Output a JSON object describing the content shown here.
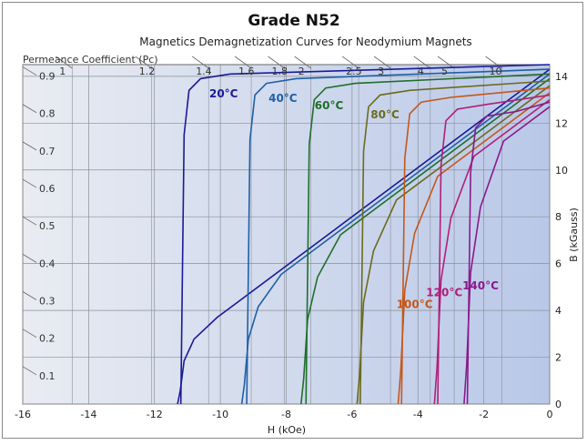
{
  "chart_data": {
    "type": "line",
    "title": "Grade N52",
    "subtitle": "Magnetics Demagnetization Curves for Neodymium Magnets",
    "xlabel": "H (kOe)",
    "ylabel": "B (kGauss)",
    "xlim": [
      -16,
      0
    ],
    "ylim": [
      0,
      14.5
    ],
    "x_ticks": [
      "-16",
      "-14",
      "-12",
      "-10",
      "-8",
      "-6",
      "-4",
      "-2",
      "0"
    ],
    "y_ticks": [
      "0",
      "2",
      "4",
      "6",
      "8",
      "10",
      "12",
      "14"
    ],
    "pc_axis_label": "Permeance Coefficient (Pc)",
    "pc_top_values": [
      "1",
      "1.2",
      "1.4",
      "1.6",
      "1.8",
      "2",
      "2.5",
      "3",
      "4",
      "5",
      "10"
    ],
    "pc_left_values": [
      "0.9",
      "0.8",
      "0.7",
      "0.6",
      "0.5",
      "0.4",
      "0.3",
      "0.2",
      "0.1"
    ],
    "grid": true,
    "series": [
      {
        "name": "20°C",
        "color": "#1a1a99",
        "br": 14.3,
        "hcb": -11.3,
        "hcj": -11.2,
        "sat": 14.0
      },
      {
        "name": "40°C",
        "color": "#1f5fa8",
        "br": 14.1,
        "hcb": -9.35,
        "hcj": -9.2,
        "sat": 13.8
      },
      {
        "name": "60°C",
        "color": "#1e6e2a",
        "br": 13.9,
        "hcb": -7.55,
        "hcj": -7.4,
        "sat": 13.6
      },
      {
        "name": "80°C",
        "color": "#6b6b1e",
        "br": 13.6,
        "hcb": -5.85,
        "hcj": -5.75,
        "sat": 13.3
      },
      {
        "name": "100°C",
        "color": "#c4571a",
        "br": 13.3,
        "hcb": -4.6,
        "hcj": -4.5,
        "sat": 13.0
      },
      {
        "name": "120°C",
        "color": "#b01f7a",
        "br": 13.0,
        "hcb": -3.5,
        "hcj": -3.4,
        "sat": 12.7
      },
      {
        "name": "140°C",
        "color": "#8a1a8a",
        "br": 12.7,
        "hcb": -2.6,
        "hcj": -2.5,
        "sat": 12.4
      }
    ]
  }
}
